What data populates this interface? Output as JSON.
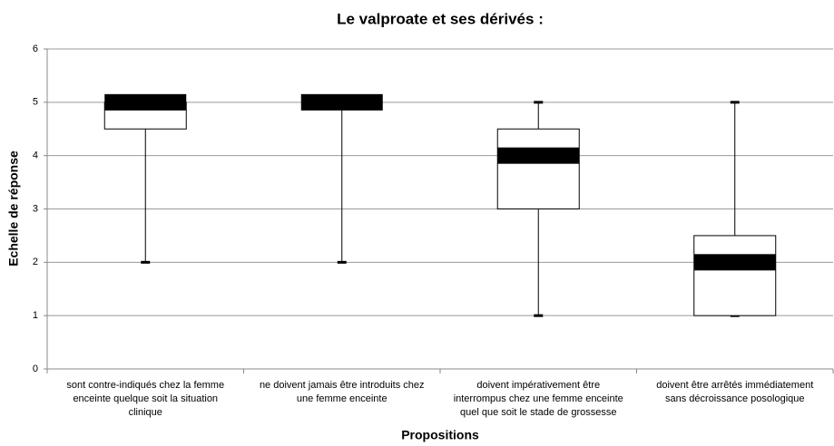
{
  "chart_data": {
    "type": "box",
    "title": "Le valproate et ses dérivés :",
    "x_label": "Propositions",
    "y_label": "Echelle de réponse",
    "categories": [
      [
        "sont contre-indiqués chez la femme",
        "enceinte quelque soit la situation",
        "clinique"
      ],
      [
        "ne doivent jamais être introduits chez",
        "une femme enceinte"
      ],
      [
        "doivent impérativement être",
        "interrompus chez une femme enceinte",
        "quel que soit le stade de grossesse"
      ],
      [
        "doivent être arrêtés immédiatement",
        "sans décroissance posologique"
      ]
    ],
    "boxes": [
      {
        "min": 2,
        "q1": 4.5,
        "median": 5,
        "q3": 5,
        "max": 5
      },
      {
        "min": 2,
        "q1": 5,
        "median": 5,
        "q3": 5,
        "max": 5
      },
      {
        "min": 1,
        "q1": 3,
        "median": 4,
        "q3": 4.5,
        "max": 5
      },
      {
        "min": 1,
        "q1": 1,
        "median": 2,
        "q3": 2.5,
        "max": 5
      }
    ],
    "color": "#000000",
    "ylim": [
      0,
      6
    ],
    "yticks": [
      0,
      1,
      2,
      3,
      4,
      5,
      6
    ],
    "grid": true
  }
}
